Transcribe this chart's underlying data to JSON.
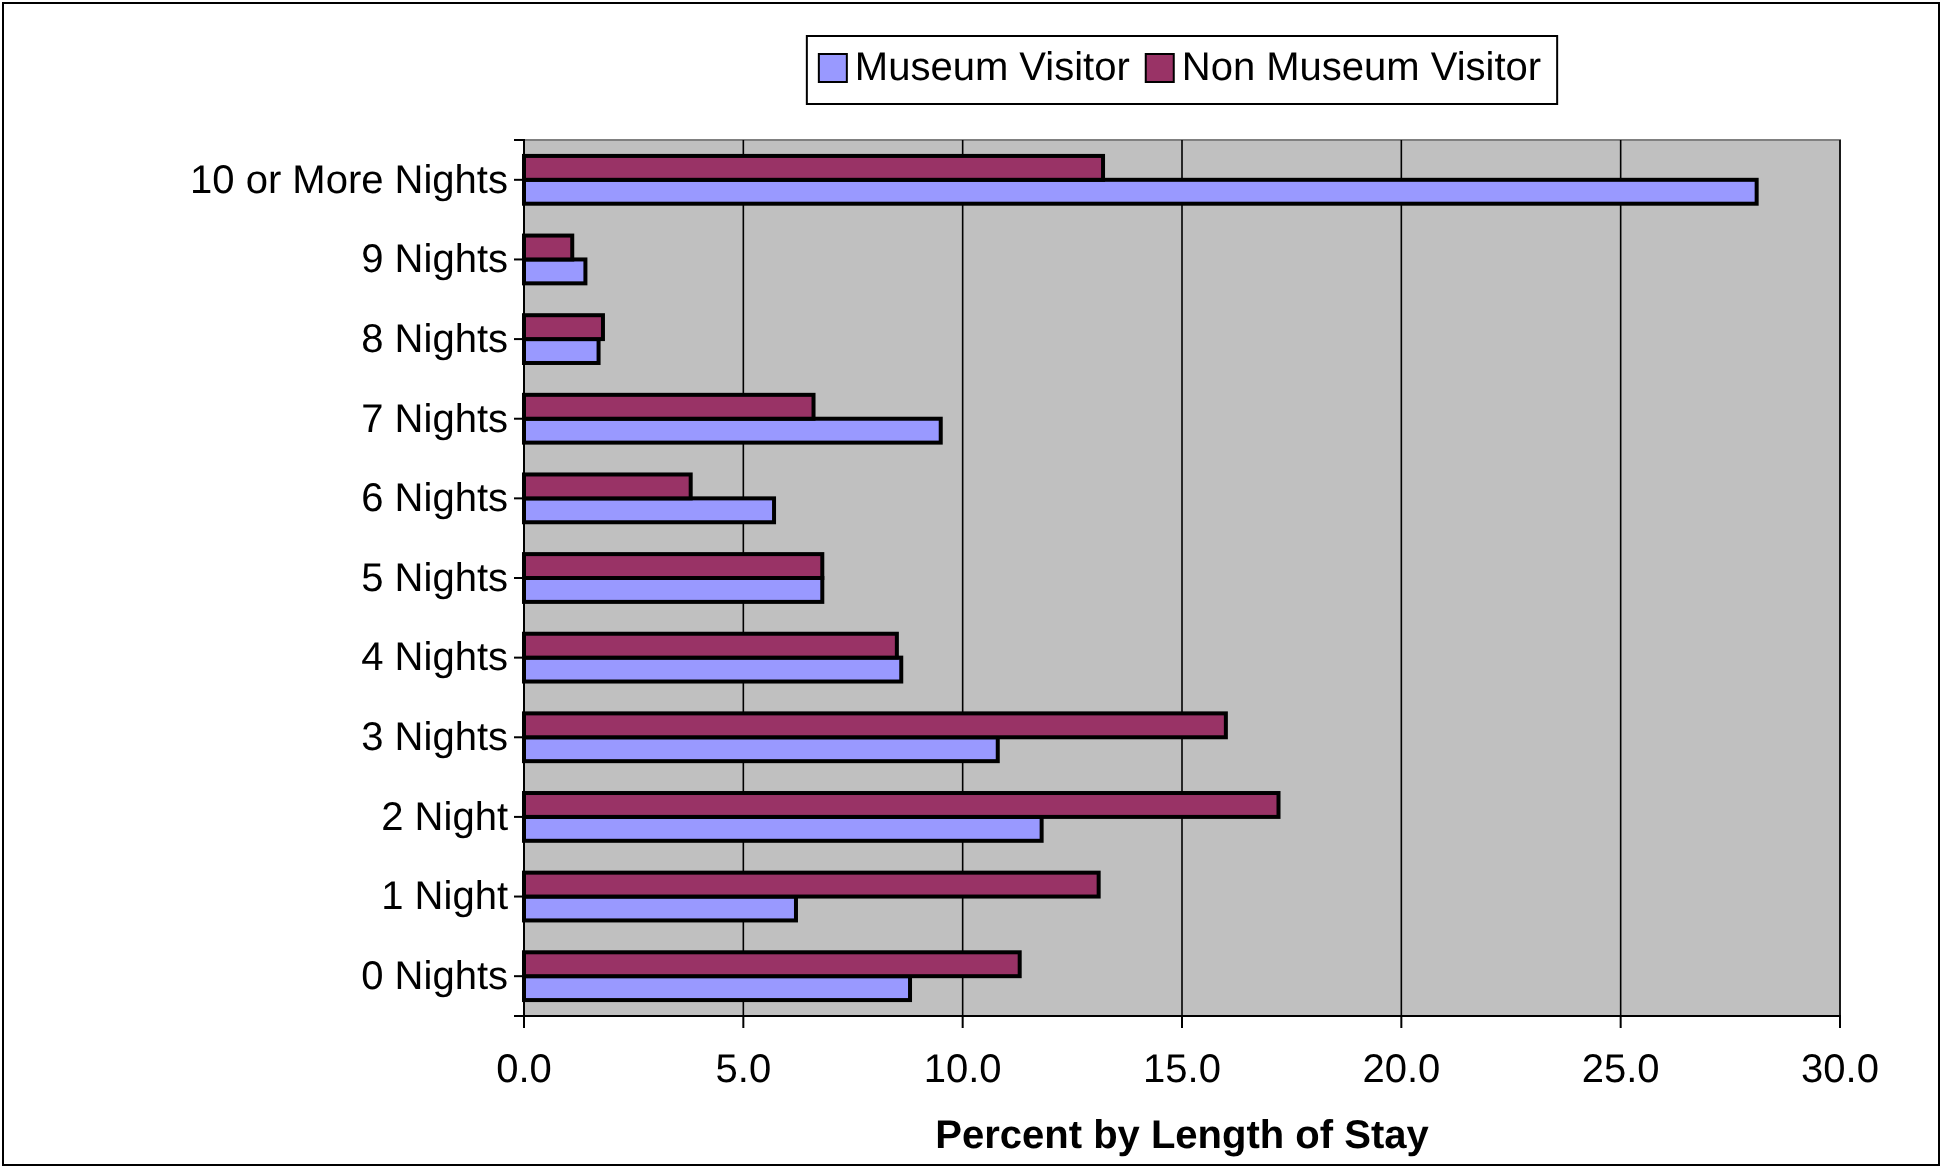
{
  "chart_data": {
    "type": "bar",
    "orientation": "horizontal",
    "xlabel": "Percent by Length of Stay",
    "categories": [
      "10 or More Nights",
      "9 Nights",
      "8 Nights",
      "7 Nights",
      "6 Nights",
      "5 Nights",
      "4 Nights",
      "3 Nights",
      "2 Night",
      "1 Night",
      "0 Nights"
    ],
    "series": [
      {
        "name": "Museum Visitor",
        "color": "#9999ff",
        "values": [
          28.1,
          1.4,
          1.7,
          9.5,
          5.7,
          6.8,
          8.6,
          10.8,
          11.8,
          6.2,
          8.8
        ]
      },
      {
        "name": "Non Museum Visitor",
        "color": "#993366",
        "values": [
          13.2,
          1.1,
          1.8,
          6.6,
          3.8,
          6.8,
          8.5,
          16.0,
          17.2,
          13.1,
          11.3
        ]
      }
    ],
    "xlim": [
      0,
      30
    ],
    "xticks": [
      {
        "value": 0,
        "label": "0.0"
      },
      {
        "value": 5,
        "label": "5.0"
      },
      {
        "value": 10,
        "label": "10.0"
      },
      {
        "value": 15,
        "label": "15.0"
      },
      {
        "value": 20,
        "label": "20.0"
      },
      {
        "value": 25,
        "label": "25.0"
      },
      {
        "value": 30,
        "label": "30.0"
      }
    ],
    "grid": "x",
    "legend": "top"
  }
}
